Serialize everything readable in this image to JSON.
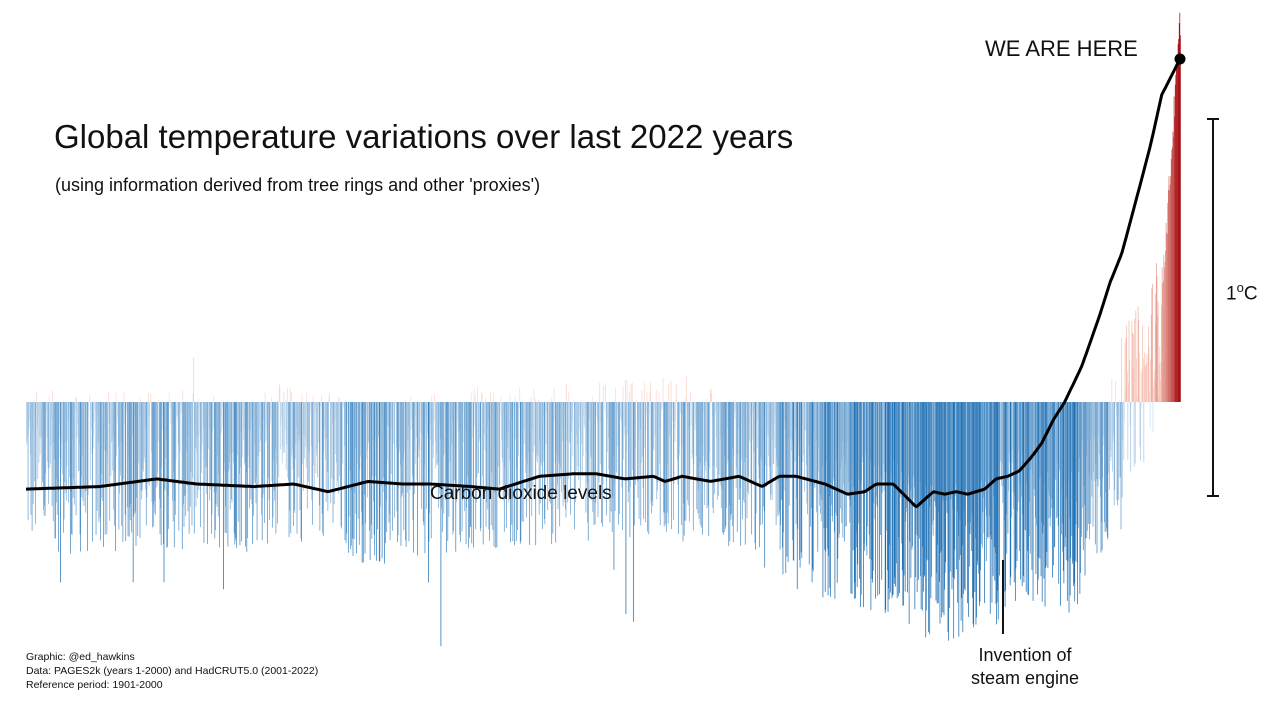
{
  "chart_data": {
    "type": "bar",
    "title": "Global temperature variations over last 2022 years",
    "subtitle": "(using information derived from tree rings and other 'proxies')",
    "x_range": [
      1,
      2022
    ],
    "y_unit": "°C",
    "reference_period": "1901-2000",
    "scale_bar": {
      "value": 1,
      "label_main": "1",
      "label_sup": "o",
      "label_unit": "C"
    },
    "temperature_anomaly_keyframes": {
      "x": [
        1,
        100,
        200,
        300,
        400,
        500,
        600,
        700,
        800,
        900,
        1000,
        1100,
        1200,
        1300,
        1400,
        1450,
        1500,
        1550,
        1600,
        1650,
        1700,
        1750,
        1800,
        1820,
        1850,
        1880,
        1900,
        1920,
        1940,
        1960,
        1980,
        1990,
        2000,
        2010,
        2022
      ],
      "y": [
        -0.22,
        -0.25,
        -0.22,
        -0.24,
        -0.22,
        -0.2,
        -0.28,
        -0.25,
        -0.22,
        -0.22,
        -0.2,
        -0.18,
        -0.22,
        -0.3,
        -0.38,
        -0.42,
        -0.45,
        -0.5,
        -0.55,
        -0.55,
        -0.48,
        -0.4,
        -0.45,
        -0.52,
        -0.4,
        -0.28,
        -0.2,
        -0.05,
        0.05,
        0.06,
        0.22,
        0.4,
        0.65,
        0.95,
        1.3
      ]
    },
    "co2_line": {
      "name": "Carbon dioxide levels",
      "x": [
        1,
        130,
        230,
        300,
        400,
        470,
        530,
        600,
        660,
        710,
        780,
        830,
        900,
        960,
        1000,
        1050,
        1100,
        1120,
        1150,
        1200,
        1250,
        1290,
        1320,
        1350,
        1400,
        1440,
        1470,
        1490,
        1520,
        1560,
        1590,
        1610,
        1630,
        1650,
        1680,
        1700,
        1720,
        1740,
        1760,
        1780,
        1800,
        1820,
        1850,
        1880,
        1900,
        1920,
        1950,
        1970,
        1990,
        2022
      ],
      "y": [
        278,
        279,
        282,
        280,
        279,
        280,
        277,
        281,
        280,
        280,
        279,
        278,
        283,
        284,
        284,
        282,
        283,
        281,
        283,
        281,
        283,
        279,
        283,
        283,
        280,
        276,
        277,
        280,
        280,
        271,
        277,
        276,
        277,
        276,
        278,
        282,
        283,
        285,
        290,
        296,
        305,
        312,
        326,
        345,
        359,
        370,
        395,
        412,
        432,
        446
      ]
    },
    "annotations": [
      {
        "text": "WE ARE HERE",
        "x": 2022
      },
      {
        "text": "Invention of steam engine",
        "x": 1712
      }
    ],
    "grid": "off",
    "colors": {
      "cold": "#2171b5",
      "cold_light": "#c6dbef",
      "warm": "#fcbba1",
      "hot": "#a50f15",
      "line": "#000000"
    }
  },
  "labels": {
    "title": "Global temperature variations over last 2022 years",
    "subtitle": "(using information derived from tree rings and other 'proxies')",
    "we_are_here": "WE ARE HERE",
    "scale_main": "1",
    "scale_sup": "o",
    "scale_unit": "C",
    "co2": "Carbon dioxide levels",
    "steam_line1": "Invention of",
    "steam_line2": "steam engine"
  },
  "credits": {
    "graphic": "Graphic: @ed_hawkins",
    "data": "Data: PAGES2k (years 1-2000) and HadCRUT5.0 (2001-2022)",
    "reference": "Reference period: 1901-2000"
  }
}
